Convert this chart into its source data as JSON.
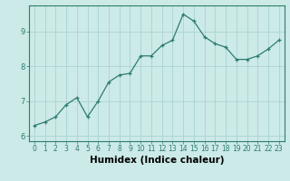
{
  "x": [
    0,
    1,
    2,
    3,
    4,
    5,
    6,
    7,
    8,
    9,
    10,
    11,
    12,
    13,
    14,
    15,
    16,
    17,
    18,
    19,
    20,
    21,
    22,
    23
  ],
  "y": [
    6.3,
    6.4,
    6.55,
    6.9,
    7.1,
    6.55,
    7.0,
    7.55,
    7.75,
    7.8,
    8.3,
    8.3,
    8.6,
    8.75,
    9.5,
    9.3,
    8.85,
    8.65,
    8.55,
    8.2,
    8.2,
    8.3,
    8.5,
    8.75
  ],
  "line_color": "#2d7d6e",
  "marker_color": "#2d7d6e",
  "bg_color": "#cceae7",
  "grid_color": "#aad4d0",
  "xlabel": "Humidex (Indice chaleur)",
  "ylabel": "",
  "title": "",
  "ylim": [
    5.85,
    9.75
  ],
  "xlim": [
    -0.5,
    23.5
  ],
  "yticks": [
    6,
    7,
    8,
    9
  ],
  "xticks": [
    0,
    1,
    2,
    3,
    4,
    5,
    6,
    7,
    8,
    9,
    10,
    11,
    12,
    13,
    14,
    15,
    16,
    17,
    18,
    19,
    20,
    21,
    22,
    23
  ],
  "xtick_labels": [
    "0",
    "1",
    "2",
    "3",
    "4",
    "5",
    "6",
    "7",
    "8",
    "9",
    "10",
    "11",
    "12",
    "13",
    "14",
    "15",
    "16",
    "17",
    "18",
    "19",
    "20",
    "21",
    "22",
    "23"
  ],
  "tick_fontsize": 5.5,
  "xlabel_fontsize": 7.5
}
